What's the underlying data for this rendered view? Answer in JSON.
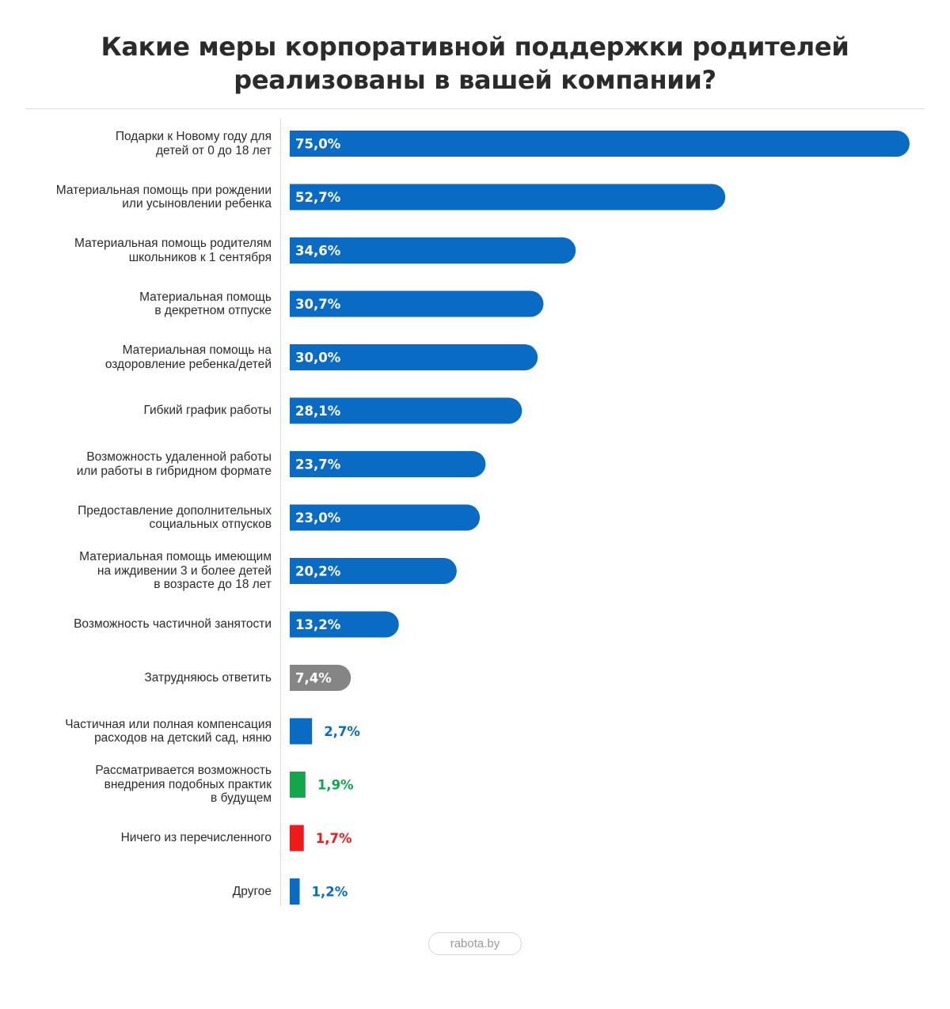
{
  "header": {
    "title_line1": "Какие меры корпоративной поддержки родителей",
    "title_line2": "реализованы в вашей компании?"
  },
  "footer": {
    "source": "rabota.by"
  },
  "colors": {
    "blue": "#0a6bc4",
    "gray": "#858585",
    "green": "#12a84a",
    "red": "#ef1b1b"
  },
  "chart_data": {
    "type": "bar",
    "orientation": "horizontal",
    "title": "Какие меры корпоративной поддержки родителей реализованы в вашей компании?",
    "xlim": [
      0,
      75
    ],
    "grid": false,
    "categories": [
      "Подарки к Новому году для\nдетей от 0 до 18 лет",
      "Материальная помощь при рождении\nили усыновлении ребенка",
      "Материальная помощь родителям\nшкольников к 1 сентября",
      "Материальная помощь\nв декретном отпуске",
      "Материальная помощь на\nоздоровление ребенка/детей",
      "Гибкий график работы",
      "Возможность удаленной работы\nили работы в гибридном формате",
      "Предоставление дополнительных\nсоциальных отпусков",
      "Материальная помощь имеющим\nна иждивении 3 и более детей\nв возрасте до 18 лет",
      "Возможность частичной занятости",
      "Затрудняюсь ответить",
      "Частичная или полная компенсация\nрасходов на детский сад, няню",
      "Рассматривается возможность\nвнедрения подобных практик\nв будущем",
      "Ничего из перечисленного",
      "Другое"
    ],
    "values": [
      75.0,
      52.7,
      34.6,
      30.7,
      30.0,
      28.1,
      23.7,
      23.0,
      20.2,
      13.2,
      7.4,
      2.7,
      1.9,
      1.7,
      1.2
    ],
    "value_labels": [
      "75,0%",
      "52,7%",
      "34,6%",
      "30,7%",
      "30,0%",
      "28,1%",
      "23,7%",
      "23,0%",
      "20,2%",
      "13,2%",
      "7,4%",
      "2,7%",
      "1,9%",
      "1,7%",
      "1,2%"
    ],
    "bar_colors": [
      "blue",
      "blue",
      "blue",
      "blue",
      "blue",
      "blue",
      "blue",
      "blue",
      "blue",
      "blue",
      "gray",
      "blue",
      "green",
      "red",
      "blue"
    ]
  }
}
